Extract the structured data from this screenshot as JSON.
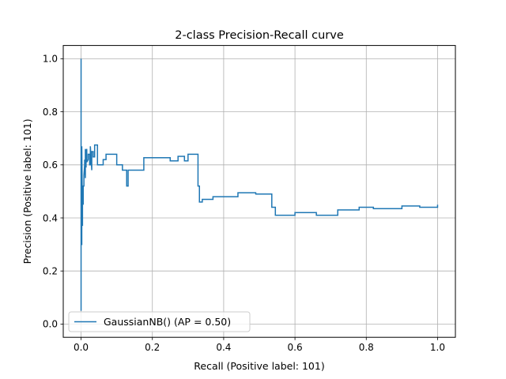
{
  "chart_data": {
    "type": "line",
    "title": "2-class Precision-Recall curve",
    "xlabel": "Recall (Positive label: 101)",
    "ylabel": "Precision (Positive label: 101)",
    "xlim": [
      -0.05,
      1.05
    ],
    "ylim": [
      -0.05,
      1.05
    ],
    "xticks": [
      0.0,
      0.2,
      0.4,
      0.6,
      0.8,
      1.0
    ],
    "xtick_labels": [
      "0.0",
      "0.2",
      "0.4",
      "0.6",
      "0.8",
      "1.0"
    ],
    "yticks": [
      0.0,
      0.2,
      0.4,
      0.6,
      0.8,
      1.0
    ],
    "ytick_labels": [
      "0.0",
      "0.2",
      "0.4",
      "0.6",
      "0.8",
      "1.0"
    ],
    "grid": true,
    "legend_position": "lower-left",
    "series": [
      {
        "name": "GaussianNB() (AP = 0.50)",
        "color": "#1f77b4",
        "x": [
          0.0,
          0.0,
          0.0,
          0.002,
          0.002,
          0.004,
          0.004,
          0.006,
          0.006,
          0.008,
          0.008,
          0.01,
          0.01,
          0.012,
          0.012,
          0.014,
          0.014,
          0.016,
          0.016,
          0.02,
          0.02,
          0.024,
          0.024,
          0.026,
          0.026,
          0.03,
          0.03,
          0.034,
          0.034,
          0.038,
          0.038,
          0.046,
          0.046,
          0.062,
          0.062,
          0.07,
          0.07,
          0.084,
          0.084,
          0.1,
          0.1,
          0.116,
          0.116,
          0.128,
          0.128,
          0.132,
          0.132,
          0.176,
          0.176,
          0.25,
          0.25,
          0.272,
          0.272,
          0.29,
          0.29,
          0.3,
          0.3,
          0.328,
          0.328,
          0.332,
          0.332,
          0.34,
          0.34,
          0.37,
          0.37,
          0.44,
          0.44,
          0.49,
          0.49,
          0.535,
          0.535,
          0.545,
          0.545,
          0.6,
          0.6,
          0.66,
          0.66,
          0.72,
          0.72,
          0.78,
          0.78,
          0.82,
          0.82,
          0.9,
          0.9,
          0.95,
          0.95,
          1.0,
          1.0
        ],
        "y": [
          0.05,
          1.0,
          0.3,
          0.3,
          0.67,
          0.37,
          0.52,
          0.45,
          0.52,
          0.52,
          0.56,
          0.6,
          0.62,
          0.55,
          0.66,
          0.59,
          0.65,
          0.66,
          0.61,
          0.62,
          0.64,
          0.64,
          0.6,
          0.6,
          0.67,
          0.58,
          0.65,
          0.65,
          0.63,
          0.63,
          0.675,
          0.675,
          0.6,
          0.6,
          0.62,
          0.62,
          0.64,
          0.64,
          0.64,
          0.64,
          0.6,
          0.6,
          0.58,
          0.58,
          0.52,
          0.52,
          0.58,
          0.58,
          0.627,
          0.627,
          0.615,
          0.615,
          0.632,
          0.632,
          0.615,
          0.615,
          0.64,
          0.64,
          0.52,
          0.52,
          0.46,
          0.46,
          0.47,
          0.47,
          0.48,
          0.48,
          0.495,
          0.495,
          0.49,
          0.49,
          0.44,
          0.44,
          0.41,
          0.41,
          0.42,
          0.42,
          0.41,
          0.41,
          0.43,
          0.43,
          0.44,
          0.44,
          0.435,
          0.435,
          0.445,
          0.445,
          0.44,
          0.44,
          0.45
        ]
      }
    ]
  }
}
